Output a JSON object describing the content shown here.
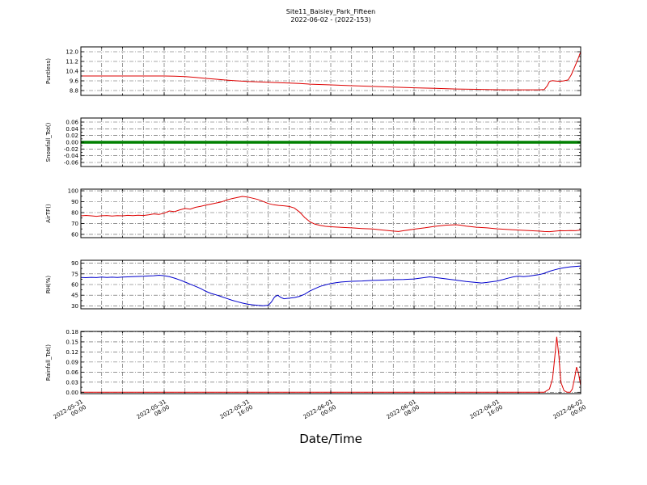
{
  "header": {
    "title": "Site11_Baisley_Park_Fifteen",
    "subtitle": "2022-06-02 - (2022-153)"
  },
  "xlabel": "Date/Time",
  "chart_data": {
    "type": "line",
    "xlim": [
      0,
      48
    ],
    "x_unit": "hours since 2022-05-31 00:00",
    "grid": {
      "style": "dash-dot",
      "x_step_hours": 2
    },
    "x_ticks": [
      {
        "hour": 0,
        "label": "2022-05-31 00:00"
      },
      {
        "hour": 8,
        "label": "2022-05-31 08:00"
      },
      {
        "hour": 16,
        "label": "2022-05-31 16:00"
      },
      {
        "hour": 24,
        "label": "2022-06-01 00:00"
      },
      {
        "hour": 32,
        "label": "2022-06-01 08:00"
      },
      {
        "hour": 40,
        "label": "2022-06-01 16:00"
      },
      {
        "hour": 48,
        "label": "2022-06-02 00:00"
      }
    ],
    "panels": [
      {
        "name": "puntless",
        "ylabel": "Puntless)",
        "color": "#dd0000",
        "line_width": 1,
        "ylim": [
          8.4,
          12.4
        ],
        "yticks": [
          "8.8",
          "9.6",
          "10.4",
          "11.2",
          "12.0"
        ],
        "x": [
          0,
          2,
          4,
          6,
          8,
          9,
          10,
          11,
          12,
          13,
          14,
          15,
          16,
          17,
          18,
          19,
          20,
          21,
          22,
          24,
          26,
          28,
          30,
          32,
          34,
          36,
          38,
          40,
          41,
          42,
          43,
          44,
          44.5,
          44.8,
          45,
          45.3,
          45.6,
          46,
          46.4,
          46.8,
          47.1,
          47.4,
          47.7,
          48
        ],
        "y": [
          10.0,
          10.0,
          10.0,
          10.0,
          10.0,
          9.98,
          9.95,
          9.88,
          9.8,
          9.73,
          9.66,
          9.6,
          9.55,
          9.52,
          9.48,
          9.45,
          9.42,
          9.38,
          9.33,
          9.27,
          9.2,
          9.14,
          9.08,
          9.03,
          8.98,
          8.93,
          8.9,
          8.87,
          8.86,
          8.86,
          8.86,
          8.86,
          8.88,
          9.2,
          9.55,
          9.62,
          9.58,
          9.56,
          9.6,
          9.68,
          10.1,
          10.7,
          11.3,
          12.0
        ]
      },
      {
        "name": "snowfall",
        "ylabel": "Snowfall_Tot()",
        "color": "#008000",
        "line_width": 3.5,
        "ylim": [
          -0.072,
          0.072
        ],
        "yticks": [
          "-0.06",
          "-0.04",
          "-0.02",
          "0.00",
          "0.02",
          "0.04",
          "0.06"
        ],
        "x": [
          0,
          48
        ],
        "y": [
          0,
          0
        ]
      },
      {
        "name": "airtf",
        "ylabel": "AirTF()",
        "color": "#dd0000",
        "line_width": 1,
        "ylim": [
          57,
          101.5
        ],
        "yticks": [
          "60",
          "70",
          "80",
          "90",
          "100"
        ],
        "x": [
          0,
          0.5,
          1,
          1.5,
          2,
          2.5,
          3,
          3.5,
          4,
          4.5,
          5,
          5.5,
          6,
          6.5,
          7,
          7.5,
          8,
          8.5,
          9,
          9.5,
          10,
          10.5,
          11,
          11.5,
          12,
          12.5,
          13,
          13.5,
          14,
          14.5,
          15,
          15.5,
          16,
          16.5,
          17,
          17.5,
          18,
          18.5,
          19,
          19.5,
          20,
          20.5,
          21,
          21.5,
          22,
          22.5,
          23,
          23.5,
          24,
          25,
          26,
          27,
          28,
          29,
          30,
          30.5,
          31,
          32,
          33,
          34,
          35,
          36,
          36.5,
          37,
          38,
          39,
          40,
          41,
          42,
          43,
          44,
          44.5,
          45,
          45.5,
          46,
          46.5,
          47,
          47.5,
          48
        ],
        "y": [
          77,
          77.4,
          77,
          76.6,
          77.1,
          77.3,
          76.8,
          77.2,
          77,
          77.5,
          77.2,
          77.6,
          77.3,
          78,
          78.8,
          78.3,
          79.5,
          81.5,
          80.8,
          82.5,
          83.8,
          83.2,
          84.8,
          85.8,
          86.8,
          87.8,
          88.8,
          89.8,
          91.5,
          92.8,
          93.8,
          94.8,
          94.3,
          93.2,
          92,
          90.2,
          88.3,
          87.2,
          86.6,
          86.2,
          85.6,
          84.2,
          80.5,
          75.5,
          71.5,
          69.3,
          68.2,
          67.4,
          67,
          66.4,
          66,
          65.4,
          64.9,
          64,
          63,
          62.6,
          63.4,
          64.8,
          66,
          67.4,
          68.4,
          68.9,
          68.4,
          67.5,
          66.6,
          66,
          65.1,
          64.5,
          64,
          63.5,
          63,
          62.6,
          62.5,
          62.9,
          63.4,
          63.3,
          63.5,
          63.4,
          64
        ]
      },
      {
        "name": "rh",
        "ylabel": "RH(%)",
        "color": "#0000cc",
        "line_width": 1,
        "ylim": [
          26,
          94
        ],
        "yticks": [
          "30",
          "45",
          "60",
          "75",
          "90"
        ],
        "x": [
          0,
          0.5,
          1,
          1.5,
          2,
          2.5,
          3,
          3.5,
          4,
          4.5,
          5,
          5.5,
          6,
          6.5,
          7,
          7.5,
          8,
          8.5,
          9,
          9.5,
          10,
          10.5,
          11,
          11.5,
          12,
          12.5,
          13,
          13.5,
          14,
          14.5,
          15,
          15.5,
          16,
          16.5,
          17,
          17.5,
          18,
          18.3,
          18.6,
          18.9,
          19.2,
          19.5,
          20,
          20.5,
          21,
          21.5,
          22,
          22.5,
          23,
          23.5,
          24,
          24.5,
          25,
          26,
          27,
          28,
          29,
          30,
          31,
          32,
          33,
          33.5,
          34,
          35,
          36,
          37,
          38,
          38.5,
          39,
          40,
          40.5,
          41,
          41.5,
          42,
          42.5,
          43,
          44,
          44.5,
          45,
          45.5,
          46,
          46.5,
          47,
          47.5,
          48
        ],
        "y": [
          70,
          69.6,
          70.1,
          69.8,
          70.4,
          70,
          70.3,
          69.9,
          70.5,
          70.8,
          71,
          71.3,
          71.6,
          72,
          72.4,
          73,
          72.4,
          71,
          69,
          66.5,
          63.5,
          60.5,
          57.5,
          54.5,
          50.5,
          47.5,
          45.5,
          43,
          40.5,
          38,
          36,
          34,
          32.5,
          31.5,
          30.8,
          30.2,
          31,
          35.5,
          42.5,
          45,
          42,
          40,
          40.8,
          41.8,
          43.5,
          46.5,
          51,
          54.5,
          57.5,
          59.5,
          61.5,
          62.5,
          63.5,
          64.5,
          65,
          65.8,
          66.2,
          66.8,
          67,
          67.8,
          69.8,
          70.8,
          70,
          68,
          66.2,
          64.2,
          62.8,
          62.2,
          63,
          65,
          66.8,
          68.8,
          70.6,
          71.8,
          71,
          71.8,
          73.8,
          75.8,
          78.6,
          80.6,
          82.6,
          83.8,
          84.8,
          85.4,
          86
        ]
      },
      {
        "name": "rainfall",
        "ylabel": "Rainfall_Tot()",
        "color": "#dd0000",
        "line_width": 1,
        "ylim": [
          -0.004,
          0.181
        ],
        "yticks": [
          "0.00",
          "0.03",
          "0.06",
          "0.09",
          "0.12",
          "0.15",
          "0.18"
        ],
        "x": [
          0,
          10,
          20,
          30,
          40,
          43,
          44.5,
          45,
          45.3,
          45.5,
          45.7,
          45.9,
          46.1,
          46.4,
          46.7,
          47,
          47.2,
          47.4,
          47.6,
          47.8,
          48
        ],
        "y": [
          0,
          0,
          0,
          0,
          0,
          0,
          0,
          0.01,
          0.04,
          0.1,
          0.165,
          0.11,
          0.03,
          0.005,
          0,
          0,
          0.01,
          0.04,
          0.075,
          0.055,
          0.02
        ]
      }
    ]
  }
}
